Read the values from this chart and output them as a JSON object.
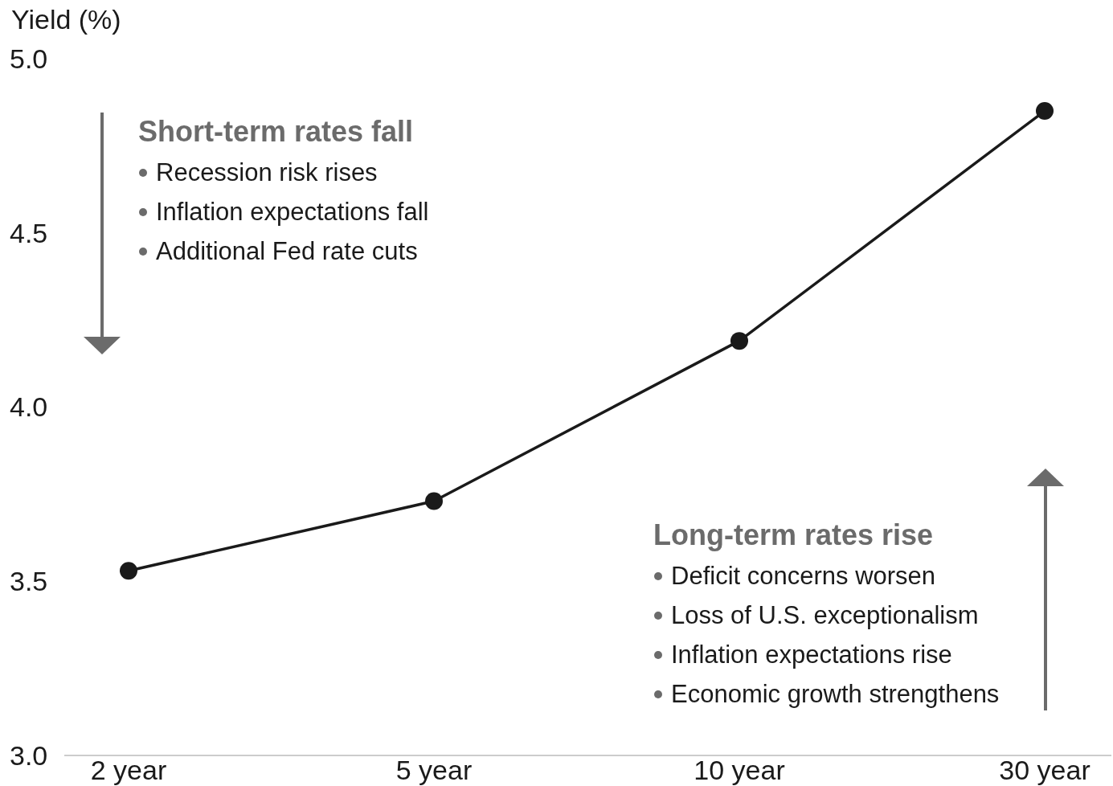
{
  "chart_data": {
    "type": "line",
    "ylabel": "Yield (%)",
    "categories": [
      "2 year",
      "5 year",
      "10 year",
      "30 year"
    ],
    "series": [
      {
        "color": "#1a1a1a",
        "values": [
          3.53,
          3.73,
          4.19,
          4.85
        ]
      }
    ],
    "ylim": [
      3.0,
      5.0
    ],
    "yticks": [
      {
        "value": 3,
        "label": "3.0"
      },
      {
        "value": 3.5,
        "label": "3.5"
      },
      {
        "value": 4,
        "label": "4.0"
      },
      {
        "value": 4.5,
        "label": "4.5"
      },
      {
        "value": 5,
        "label": "5.0"
      }
    ],
    "marker": "circle",
    "line_style": "solid",
    "grid": false,
    "annotations": [
      "Short-term rates fall",
      "Recession risk rises",
      "Inflation expectations fall",
      "Additional Fed rate cuts",
      "Long-term rates rise",
      "Deficit concerns worsen",
      "Loss of U.S. exceptionalism",
      "Inflation expectations rise",
      "Economic growth strengthens"
    ]
  }
}
